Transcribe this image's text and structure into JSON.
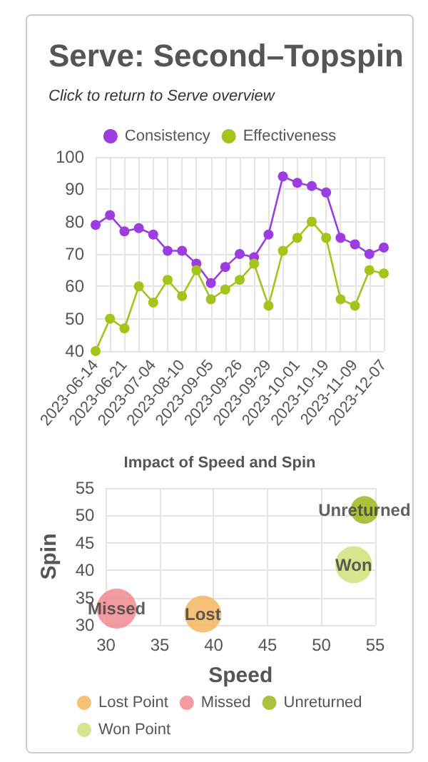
{
  "chart_data": [
    {
      "type": "line",
      "title": "Serve: Second–Topspin",
      "subtitle": "Click to return to Serve overview",
      "categories": [
        "2023-06-14",
        null,
        "2023-06-21",
        null,
        "2023-07-04",
        null,
        "2023-08-10",
        null,
        "2023-09-05",
        null,
        "2023-09-26",
        null,
        "2023-09-29",
        null,
        "2023-10-01",
        null,
        "2023-10-19",
        null,
        "2023-11-09",
        null,
        "2023-12-07"
      ],
      "series": [
        {
          "name": "Consistency",
          "color": "#9b3de0",
          "values": [
            79,
            82,
            77,
            78,
            76,
            71,
            71,
            67,
            61,
            66,
            70,
            69,
            76,
            94,
            92,
            91,
            89,
            75,
            73,
            70,
            72
          ]
        },
        {
          "name": "Effectiveness",
          "color": "#a3c41a",
          "values": [
            40,
            50,
            47,
            60,
            55,
            62,
            57,
            65,
            56,
            59,
            62,
            67,
            54,
            71,
            75,
            80,
            75,
            56,
            54,
            65,
            64
          ]
        }
      ],
      "ylim": [
        40,
        100
      ],
      "yticks": [
        40,
        50,
        60,
        70,
        80,
        90,
        100
      ],
      "grid": true,
      "legend": "top",
      "marker": "circle",
      "line_style": "solid"
    },
    {
      "type": "bubble",
      "title": "Impact of Speed and Spin",
      "xlabel": "Speed",
      "ylabel": "Spin",
      "series": [
        {
          "name": "Lost Point",
          "color": "#f5b55f",
          "x": [
            39
          ],
          "values": [
            32
          ],
          "sizes": [
            0.85
          ],
          "value_labels": [
            "Lost"
          ]
        },
        {
          "name": "Missed",
          "color": "#f08a8f",
          "x": [
            31
          ],
          "values": [
            33
          ],
          "sizes": [
            1
          ],
          "value_labels": [
            "Missed"
          ]
        },
        {
          "name": "Unreturned",
          "color": "#9ab81a",
          "x": [
            54
          ],
          "values": [
            51
          ],
          "sizes": [
            0.48
          ],
          "value_labels": [
            "Unreturned"
          ]
        },
        {
          "name": "Won Point",
          "color": "#cfe17a",
          "x": [
            53
          ],
          "values": [
            41
          ],
          "sizes": [
            0.85
          ],
          "value_labels": [
            "Won"
          ]
        }
      ],
      "xlim": [
        30,
        55
      ],
      "xticks": [
        30,
        35,
        40,
        45,
        50,
        55
      ],
      "ylim": [
        30,
        55
      ],
      "yticks": [
        30,
        35,
        40,
        45,
        50,
        55
      ],
      "grid": true,
      "legend": "bottom"
    }
  ]
}
